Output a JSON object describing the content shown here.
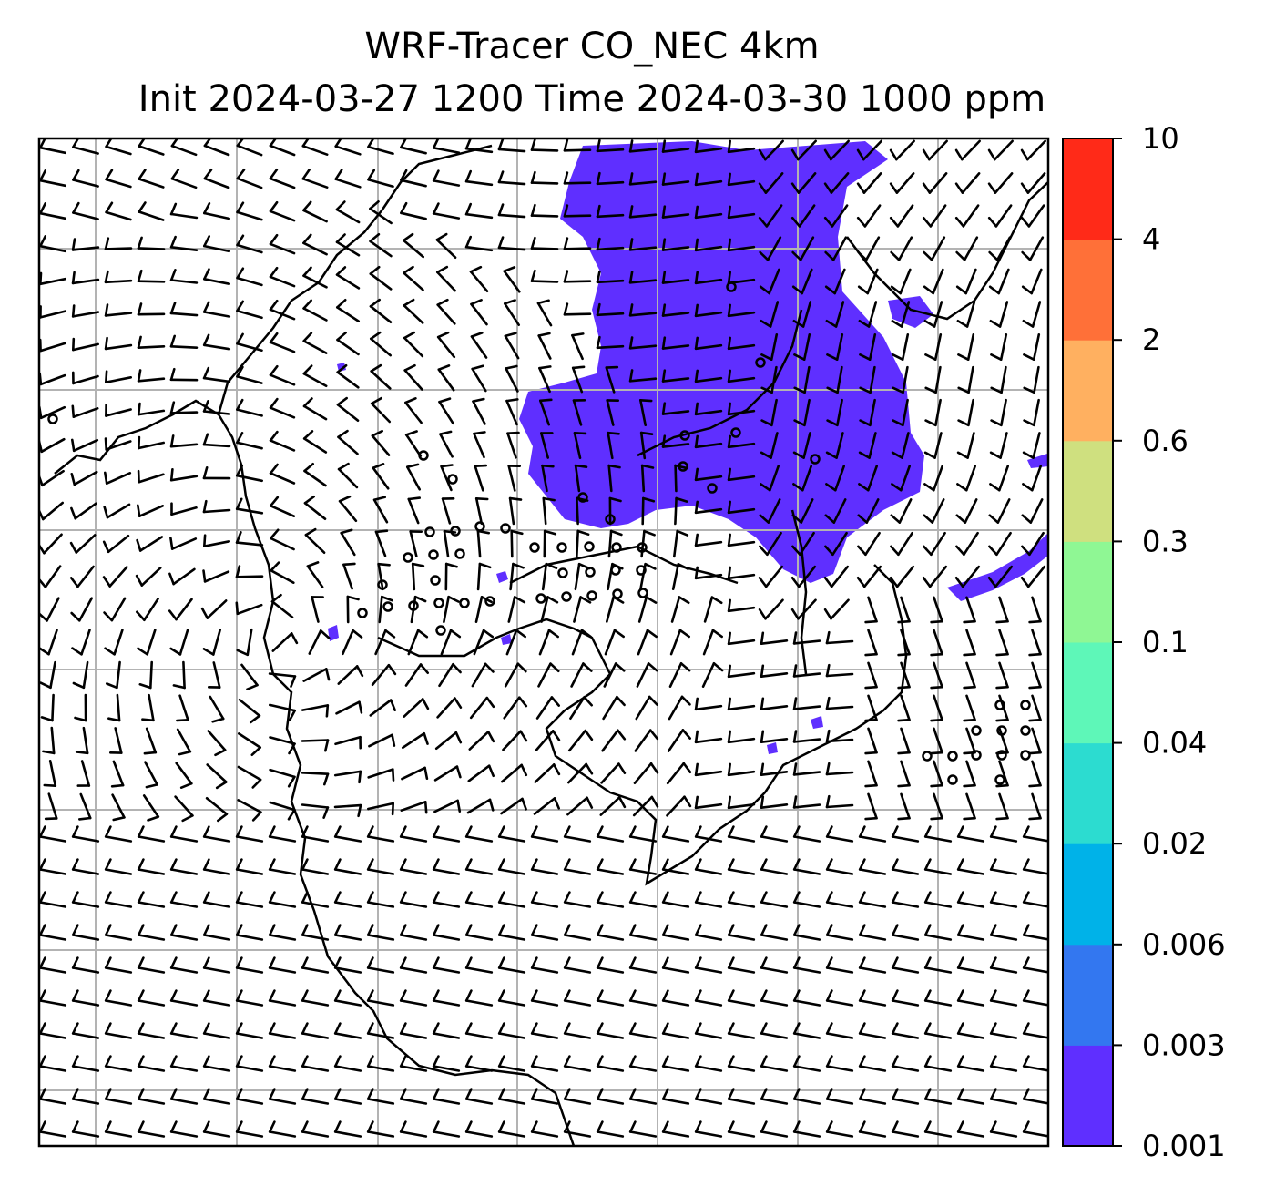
{
  "title": {
    "line1": "WRF-Tracer CO_NEC 4km",
    "line2": "Init 2024-03-27 1200 Time 2024-03-30 1000 ppm"
  },
  "colorbar": {
    "levels": [
      "0.001",
      "0.003",
      "0.006",
      "0.02",
      "0.04",
      "0.1",
      "0.3",
      "0.6",
      "2",
      "4",
      "10"
    ],
    "colors": [
      "#5f2fff",
      "#3377f0",
      "#00b2e8",
      "#2cdcd0",
      "#5ef7b8",
      "#8ff794",
      "#cfe07f",
      "#ffb060",
      "#ff7038",
      "#ff2a18"
    ]
  },
  "colors": {
    "tracer": "#5f2fff",
    "gridline": "#b3b3b3",
    "barb": "#000000"
  },
  "map": {
    "wind_field": "barbs",
    "gridlines": true,
    "coastlines": true
  }
}
